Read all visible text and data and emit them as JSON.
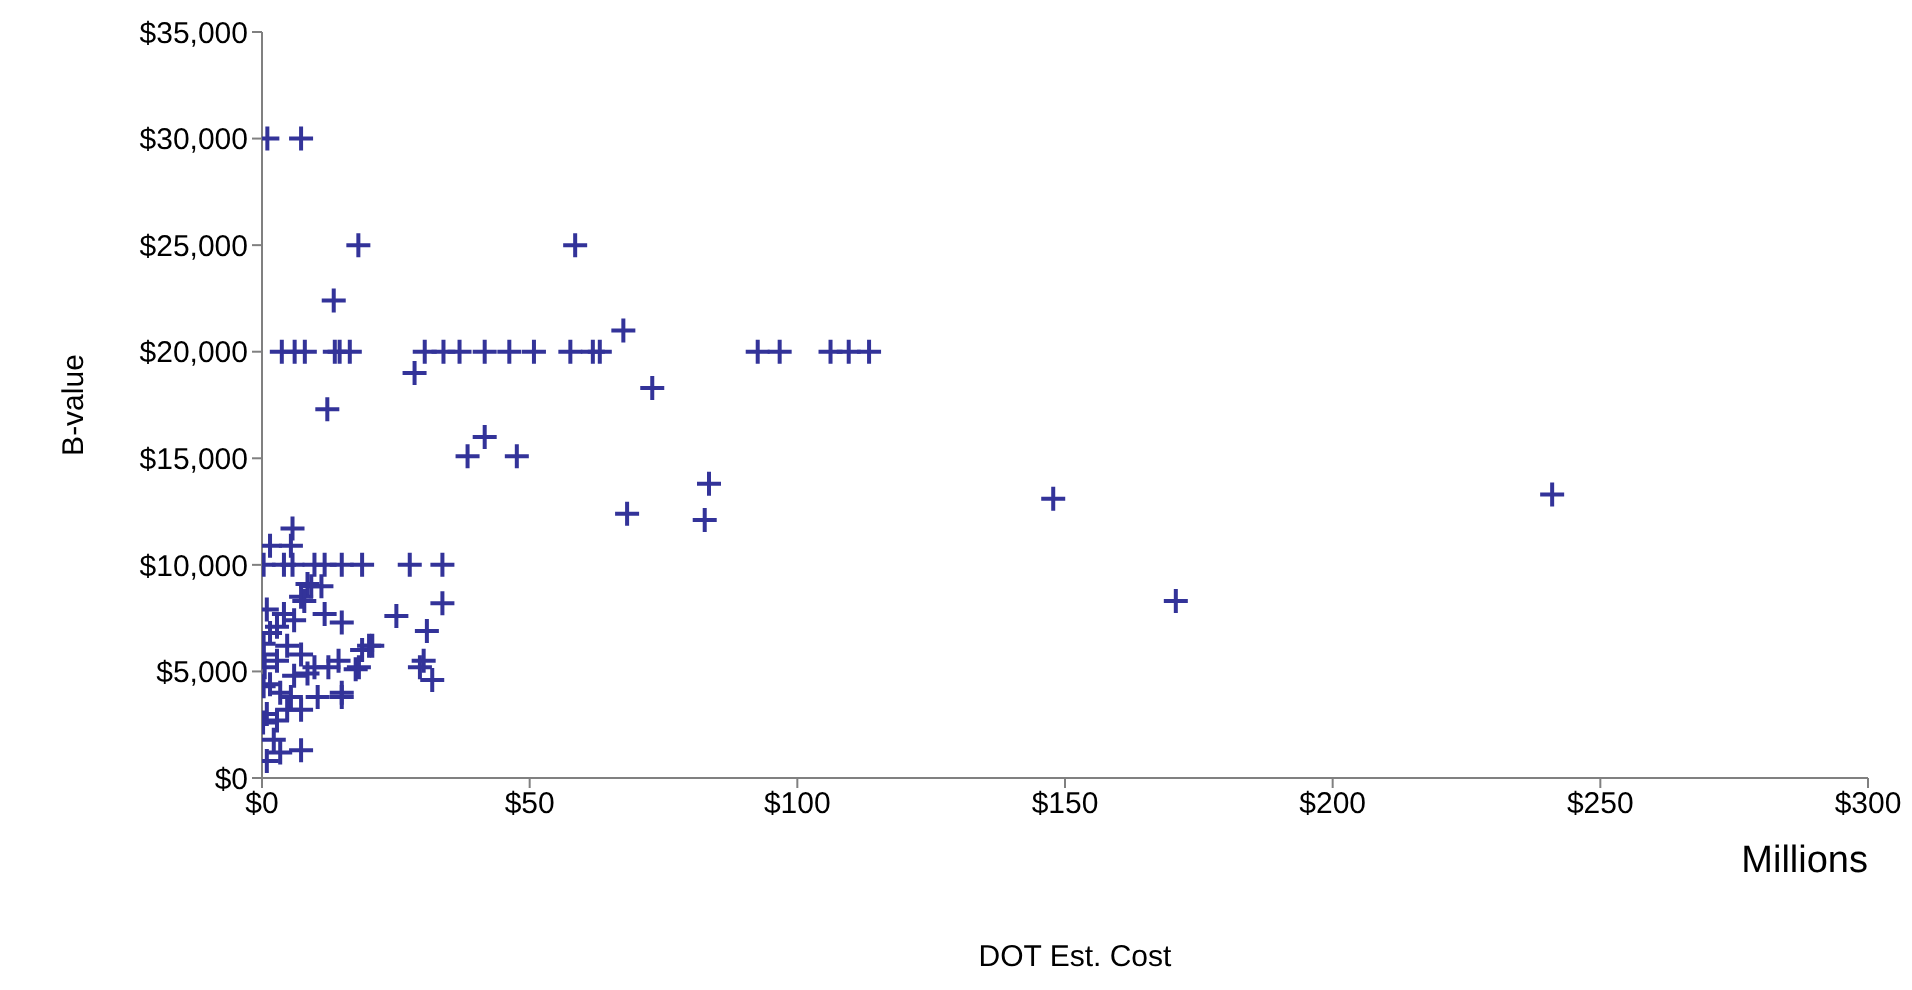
{
  "chart_data": {
    "type": "scatter",
    "xlabel": "DOT Est. Cost",
    "ylabel": "B-value",
    "annotations": [
      "Millions"
    ],
    "xlim": [
      0,
      300
    ],
    "ylim": [
      0,
      35000
    ],
    "xticks": [
      {
        "value": 0,
        "label": "$0"
      },
      {
        "value": 50,
        "label": "$50"
      },
      {
        "value": 100,
        "label": "$100"
      },
      {
        "value": 150,
        "label": "$150"
      },
      {
        "value": 200,
        "label": "$200"
      },
      {
        "value": 250,
        "label": "$250"
      },
      {
        "value": 300,
        "label": "$300"
      }
    ],
    "yticks": [
      {
        "value": 0,
        "label": "$0"
      },
      {
        "value": 5000,
        "label": "$5,000"
      },
      {
        "value": 10000,
        "label": "$10,000"
      },
      {
        "value": 15000,
        "label": "$15,000"
      },
      {
        "value": 20000,
        "label": "$20,000"
      },
      {
        "value": 25000,
        "label": "$25,000"
      },
      {
        "value": 30000,
        "label": "$30,000"
      },
      {
        "value": 35000,
        "label": "$35,000"
      }
    ],
    "marker": "cross",
    "series": [
      {
        "color": "#333399",
        "x": [
          1,
          7.3,
          18,
          58.5,
          13.4,
          67.5,
          3.7,
          6.1,
          8,
          13.6,
          14.5,
          16.4,
          30.4,
          33.9,
          36.9,
          41.6,
          46.2,
          50.8,
          57.6,
          61.8,
          63.1,
          92.6,
          96.7,
          106.2,
          109.6,
          113.4,
          28.5,
          72.9,
          12.2,
          41.6,
          38.4,
          47.6,
          83.5,
          82.7,
          68.2,
          147.8,
          170.7,
          241,
          5.7,
          1.5,
          5.4,
          0.3,
          4.1,
          5.7,
          9.8,
          11.7,
          14.9,
          18.7,
          27.6,
          33.7,
          8.5,
          11.1,
          7.3,
          33.7,
          25.1,
          30.8,
          20.6,
          18.7,
          14.3,
          30.2,
          17.5,
          29.5,
          31.8,
          14.9,
          9.2,
          7.9,
          0.9,
          4.1,
          6,
          11.7,
          14.9,
          20,
          18.1,
          0.5,
          2.8,
          4.7,
          7.3,
          8.5,
          12.4,
          14.9,
          0.3,
          1.5,
          3.4,
          5.4,
          0.9,
          2.8,
          4.7,
          7.3,
          0.2,
          2.2,
          3.4,
          7.3,
          0.9,
          0.3,
          0.3,
          1.5,
          2.8,
          6,
          9.8,
          10.4
        ],
        "values": [
          30000,
          30000,
          25000,
          25000,
          22400,
          21000,
          20000,
          20000,
          20000,
          20000,
          20000,
          20000,
          20000,
          20000,
          20000,
          20000,
          20000,
          20000,
          20000,
          20000,
          20000,
          20000,
          20000,
          20000,
          20000,
          20000,
          19000,
          18300,
          17300,
          16000,
          15100,
          15100,
          13800,
          12100,
          12400,
          13100,
          8300,
          13300,
          11700,
          10900,
          10900,
          10000,
          10000,
          10000,
          10000,
          10000,
          10000,
          10000,
          10000,
          10000,
          9100,
          9000,
          8500,
          8200,
          7600,
          6900,
          6200,
          6000,
          5500,
          5500,
          5100,
          5200,
          4600,
          4000,
          9000,
          8300,
          7900,
          7700,
          7400,
          7700,
          7300,
          6200,
          5200,
          5200,
          5500,
          6200,
          5800,
          4900,
          5200,
          3800,
          4300,
          4400,
          4000,
          3800,
          3000,
          2700,
          3200,
          3200,
          2600,
          1800,
          1200,
          1300,
          800,
          5800,
          6300,
          6800,
          7100,
          4800,
          5200,
          3800
        ]
      }
    ]
  }
}
